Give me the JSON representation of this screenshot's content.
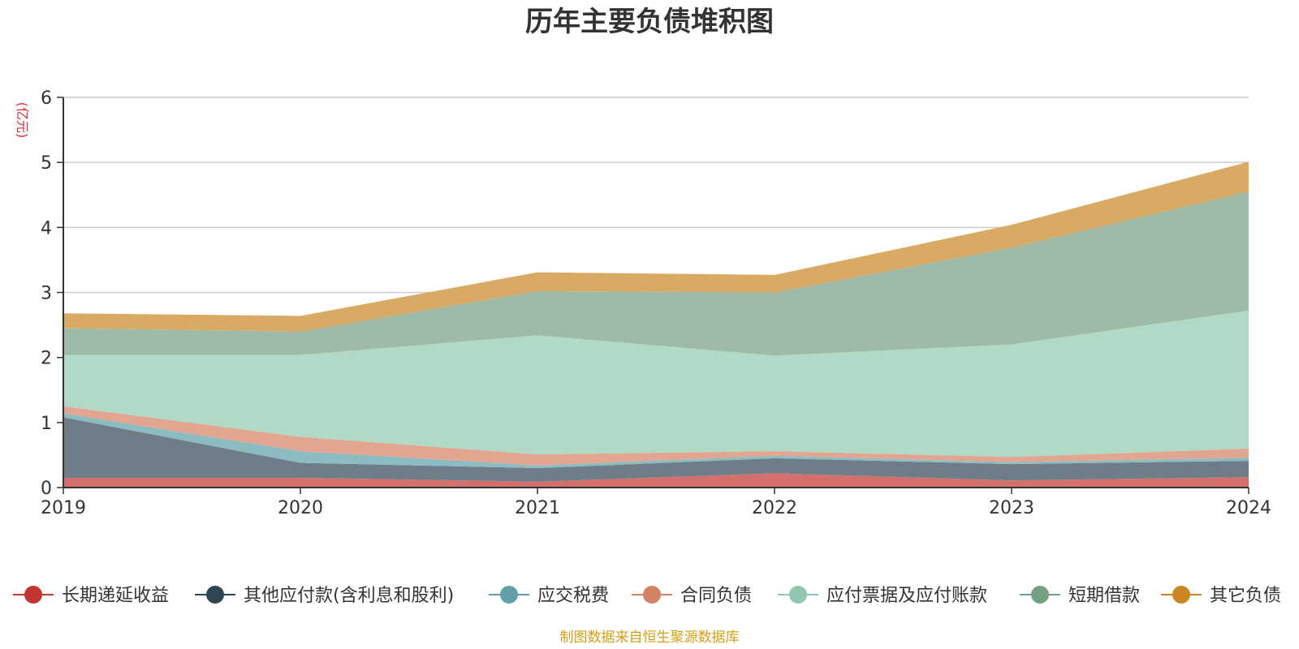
{
  "chart_data": {
    "type": "area",
    "stacked": true,
    "title": "历年主要负债堆积图",
    "ylabel": "(亿元)",
    "ylim": [
      0,
      6
    ],
    "yticks": [
      "0",
      "1",
      "2",
      "3",
      "4",
      "5",
      "6"
    ],
    "categories": [
      "2019",
      "2020",
      "2021",
      "2022",
      "2023",
      "2024"
    ],
    "series": [
      {
        "name": "长期递延收益",
        "color": "#c23531",
        "fill": "#d4706c",
        "values": [
          0.15,
          0.15,
          0.09,
          0.22,
          0.11,
          0.16
        ]
      },
      {
        "name": "其他应付款(含利息和股利)",
        "color": "#2f4554",
        "fill": "#6e7d88",
        "values": [
          0.93,
          0.23,
          0.21,
          0.23,
          0.25,
          0.25
        ]
      },
      {
        "name": "应交税费",
        "color": "#61a0a8",
        "fill": "#8cbcc2",
        "values": [
          0.06,
          0.18,
          0.04,
          0.04,
          0.03,
          0.05
        ]
      },
      {
        "name": "合同负债",
        "color": "#d48265",
        "fill": "#e2a590",
        "values": [
          0.11,
          0.22,
          0.17,
          0.07,
          0.08,
          0.14
        ]
      },
      {
        "name": "应付票据及应付账款",
        "color": "#91c7ae",
        "fill": "#b0d9c6",
        "values": [
          0.79,
          1.26,
          1.83,
          1.47,
          1.73,
          2.12
        ]
      },
      {
        "name": "短期借款",
        "color": "#749f83",
        "fill": "#9fbba8",
        "values": [
          0.41,
          0.36,
          0.68,
          0.97,
          1.49,
          1.83
        ]
      },
      {
        "name": "其它负债",
        "color": "#ca8622",
        "fill": "#d9aa63",
        "values": [
          0.23,
          0.24,
          0.29,
          0.27,
          0.35,
          0.46
        ]
      }
    ],
    "legend_position": "bottom",
    "grid": true
  },
  "source_note": "制图数据来自恒生聚源数据库",
  "colors": {
    "axis": "#333333",
    "grid": "#cccccc",
    "unit": "#e8262f",
    "source": "#d4a017"
  }
}
